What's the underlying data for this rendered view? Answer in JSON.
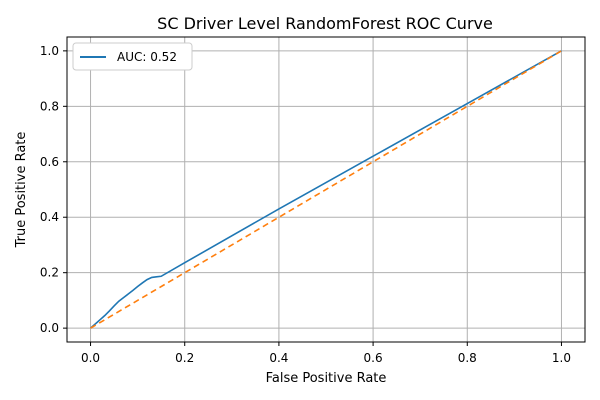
{
  "chart_data": {
    "type": "line",
    "title": "SC Driver Level RandomForest ROC Curve",
    "xlabel": "False Positive Rate",
    "ylabel": "True Positive Rate",
    "xlim": [
      -0.05,
      1.05
    ],
    "ylim": [
      -0.05,
      1.05
    ],
    "x_ticks": [
      0.0,
      0.2,
      0.4,
      0.6,
      0.8,
      1.0
    ],
    "y_ticks": [
      0.0,
      0.2,
      0.4,
      0.6,
      0.8,
      1.0
    ],
    "x_tick_labels": [
      "0.0",
      "0.2",
      "0.4",
      "0.6",
      "0.8",
      "1.0"
    ],
    "y_tick_labels": [
      "0.0",
      "0.2",
      "0.4",
      "0.6",
      "0.8",
      "1.0"
    ],
    "grid": true,
    "legend": {
      "placement": "top-left",
      "entries": [
        "AUC: 0.52"
      ]
    },
    "series": [
      {
        "name": "AUC: 0.52",
        "color": "#1f77b4",
        "style": "solid",
        "x": [
          0.0,
          0.01,
          0.02,
          0.03,
          0.04,
          0.05,
          0.06,
          0.07,
          0.08,
          0.09,
          0.1,
          0.11,
          0.12,
          0.13,
          0.14,
          0.15,
          0.2,
          0.4,
          0.6,
          0.8,
          1.0
        ],
        "y": [
          0.0,
          0.015,
          0.03,
          0.045,
          0.062,
          0.08,
          0.097,
          0.11,
          0.123,
          0.136,
          0.15,
          0.163,
          0.175,
          0.183,
          0.185,
          0.187,
          0.236,
          0.43,
          0.62,
          0.81,
          1.0
        ]
      },
      {
        "color": "#ff7f0e",
        "style": "dashed",
        "x": [
          0.0,
          1.0
        ],
        "y": [
          0.0,
          1.0
        ]
      }
    ]
  }
}
